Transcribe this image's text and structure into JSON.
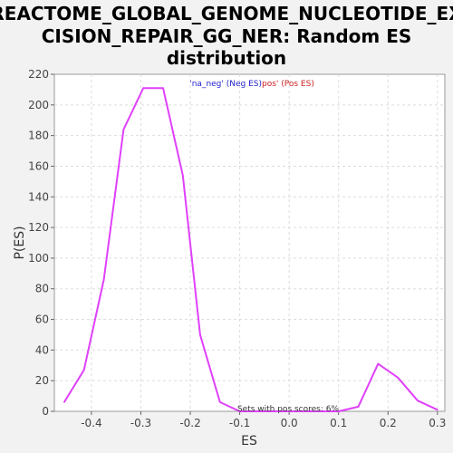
{
  "chart_data": {
    "type": "line",
    "title_lines": [
      "REACTOME_GLOBAL_GENOME_NUCLEOTIDE_EX",
      "CISION_REPAIR_GG_NER: Random ES",
      "distribution"
    ],
    "xlabel": "ES",
    "ylabel": "P(ES)",
    "xlim": [
      -0.475,
      0.315
    ],
    "ylim": [
      0,
      220
    ],
    "xticks": [
      -0.4,
      -0.3,
      -0.2,
      -0.1,
      0.0,
      0.1,
      0.2,
      0.3
    ],
    "xtick_labels": [
      "-0.4",
      "-0.3",
      "-0.2",
      "-0.1",
      "0.0",
      "0.1",
      "0.2",
      "0.3"
    ],
    "yticks": [
      0,
      20,
      40,
      60,
      80,
      100,
      120,
      140,
      160,
      180,
      200,
      220
    ],
    "ytick_labels": [
      "0",
      "20",
      "40",
      "60",
      "80",
      "100",
      "120",
      "140",
      "160",
      "180",
      "200",
      "220"
    ],
    "grid": true,
    "legend": [
      {
        "label": "'na_neg' (Neg ES)",
        "color": "#1f1fcc"
      },
      {
        "label": "pos' (Pos ES)",
        "color": "#cc1f1f"
      }
    ],
    "annotation": "Sets with pos scores: 6%",
    "series": [
      {
        "color": "#e040fb",
        "x": [
          -0.455,
          -0.415,
          -0.375,
          -0.335,
          -0.295,
          -0.255,
          -0.215,
          -0.18,
          -0.14,
          -0.1,
          -0.06,
          -0.02,
          0.02,
          0.06,
          0.1,
          0.14,
          0.18,
          0.22,
          0.26,
          0.3
        ],
        "y": [
          6,
          27,
          86,
          184,
          211,
          211,
          154,
          50,
          6,
          0,
          0,
          0,
          0,
          0,
          0,
          3,
          31,
          22,
          7,
          1
        ]
      }
    ]
  }
}
